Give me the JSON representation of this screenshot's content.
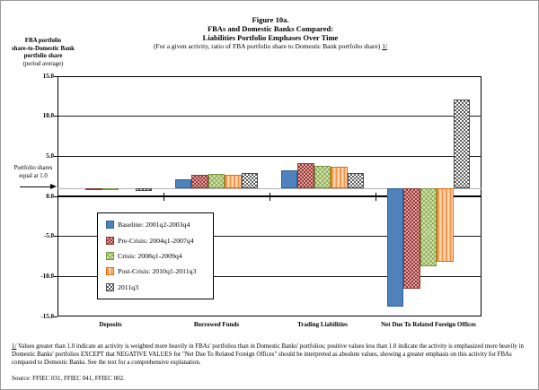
{
  "figure": {
    "title_line1": "Figure 10a.",
    "title_line2": "FBAs and Domestic Banks Compared:",
    "title_line3": "Liabilities Portfolio Emphases Over Time",
    "subtitle": "(For a given activity, ratio of FBA portfolio share to Domestic Bank portfolio share) ",
    "subtitle_ref": "1/"
  },
  "axis_title": {
    "line1": "FBA portfolio",
    "line2": "share-to-Domestic Bank",
    "line3": "portfolio share",
    "line4": "(period average)"
  },
  "annotation": {
    "line1": "Portfolio shares",
    "line2": "equal at 1.0"
  },
  "chart_data": {
    "type": "bar",
    "title": "FBAs and Domestic Banks Compared: Liabilities Portfolio Emphases Over Time",
    "ylabel": "FBA portfolio share-to-Domestic Bank portfolio share (period average)",
    "xlabel": "",
    "ylim": [
      -15,
      15
    ],
    "grid": true,
    "legend_position": "center-left",
    "bar_baseline": 1.0,
    "reference_line": {
      "value": 1.0,
      "label": "Portfolio shares equal at 1.0"
    },
    "ytick_values": [
      15,
      10,
      5,
      0,
      -5,
      -10,
      -15
    ],
    "ytick_labels": [
      "15.0",
      "10.0",
      "5.0",
      "0.0",
      "-5.0",
      "-10.0",
      "-15.0"
    ],
    "categories": [
      "Deposits",
      "Borrowed Funds",
      "Trading Liabilities",
      "Net Due To Related Foreign Offices"
    ],
    "series": [
      {
        "name": "Baseline: 2001q2-2003q4",
        "color": "#4F81BD",
        "pattern": "solid",
        "values": [
          1.0,
          2.1,
          3.3,
          -13.8
        ]
      },
      {
        "name": "Pre-Crisis: 2004q1-2007q4",
        "color": "#C0504D",
        "pattern": "checker-red",
        "values": [
          0.8,
          2.7,
          4.1,
          -11.5
        ]
      },
      {
        "name": "Crisis: 2008q1-2009q4",
        "color": "#9BBB59",
        "pattern": "crosshatch",
        "values": [
          0.8,
          2.75,
          3.8,
          -8.7
        ]
      },
      {
        "name": "Post-Crisis: 2010q1-2011q3",
        "color": "#F79646",
        "pattern": "vert-stripes",
        "values": [
          1.0,
          2.7,
          3.7,
          -8.2
        ]
      },
      {
        "name": "2011q3",
        "color": "#808080",
        "pattern": "checker-gray",
        "values": [
          0.65,
          2.9,
          2.9,
          12.1
        ]
      }
    ]
  },
  "footnote": {
    "marker": "1/",
    "text": "  Values greater than 1.0 indicate an activity is weighted more heavily in FBAs' portfolios than in Domestic Banks' portfolios; positive values less than 1.0 indicate the activity is emphasized more heavily in Domestic Banks' portfolios EXCEPT that NEGATIVE VALUES for \"Net Due To Related Foreign Offices\" should be interpreted as absolute values, showing a greater emphasis on this activity for FBAs compared to Domestic Banks.  See the text for a comprehensive explanation."
  },
  "source": "Source: FFIEC 031, FFIEC 041, FFIEC 002."
}
